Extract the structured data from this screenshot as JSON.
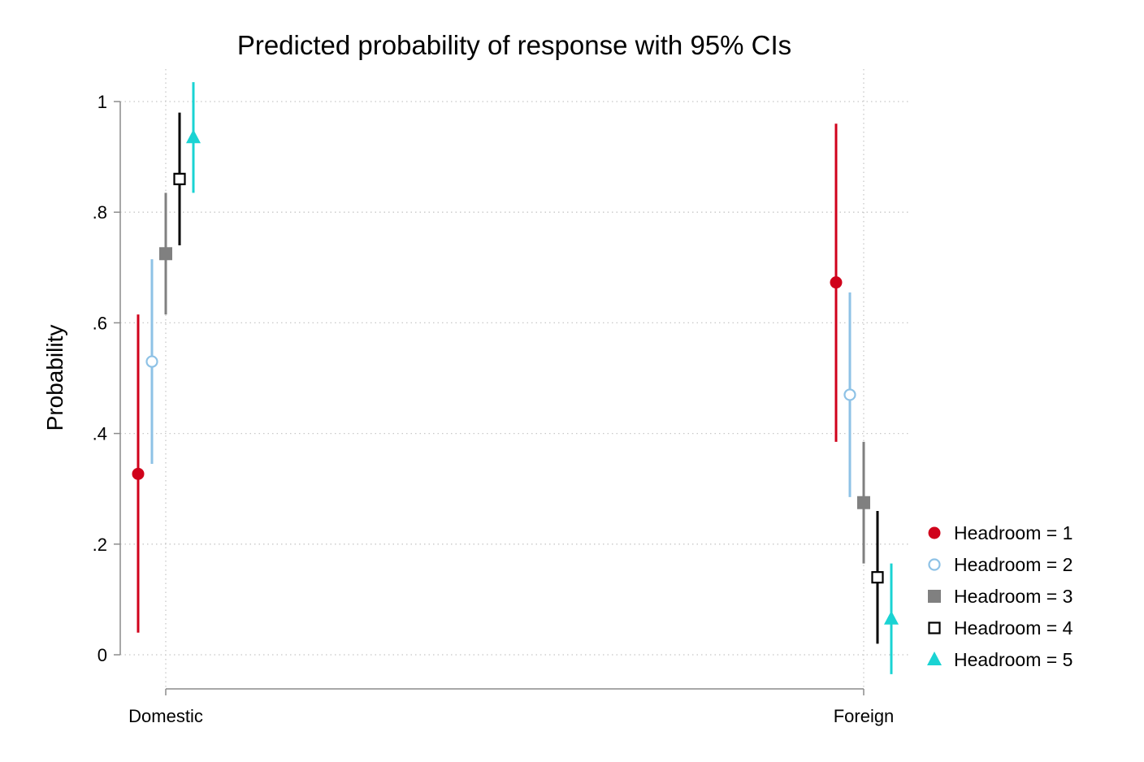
{
  "chart_data": {
    "type": "scatter",
    "title": "Predicted probability of response with 95% CIs",
    "xlabel": "",
    "ylabel": "Probability",
    "categories": [
      "Domestic",
      "Foreign"
    ],
    "yticks": [
      "0",
      ".2",
      ".4",
      ".6",
      ".8",
      "1"
    ],
    "ytick_values": [
      0,
      0.2,
      0.4,
      0.6,
      0.8,
      1
    ],
    "ylim": [
      -0.07,
      1.04
    ],
    "grid": true,
    "legend_position": "right",
    "series": [
      {
        "name": "Headroom = 1",
        "color": "#d0021b",
        "marker": "circle-filled",
        "points": [
          {
            "estimate": 0.327,
            "ci_low": 0.04,
            "ci_high": 0.615
          },
          {
            "estimate": 0.673,
            "ci_low": 0.385,
            "ci_high": 0.96
          }
        ]
      },
      {
        "name": "Headroom = 2",
        "color": "#8ec2e6",
        "marker": "circle-hollow",
        "points": [
          {
            "estimate": 0.53,
            "ci_low": 0.345,
            "ci_high": 0.715
          },
          {
            "estimate": 0.47,
            "ci_low": 0.285,
            "ci_high": 0.655
          }
        ]
      },
      {
        "name": "Headroom = 3",
        "color": "#808080",
        "marker": "square-filled",
        "points": [
          {
            "estimate": 0.725,
            "ci_low": 0.615,
            "ci_high": 0.835
          },
          {
            "estimate": 0.275,
            "ci_low": 0.165,
            "ci_high": 0.385
          }
        ]
      },
      {
        "name": "Headroom = 4",
        "color": "#000000",
        "marker": "square-hollow",
        "points": [
          {
            "estimate": 0.86,
            "ci_low": 0.74,
            "ci_high": 0.98
          },
          {
            "estimate": 0.14,
            "ci_low": 0.02,
            "ci_high": 0.26
          }
        ]
      },
      {
        "name": "Headroom = 5",
        "color": "#1ad3d3",
        "marker": "triangle-filled",
        "points": [
          {
            "estimate": 0.935,
            "ci_low": 0.835,
            "ci_high": 1.035
          },
          {
            "estimate": 0.065,
            "ci_low": -0.035,
            "ci_high": 0.165
          }
        ]
      }
    ]
  }
}
